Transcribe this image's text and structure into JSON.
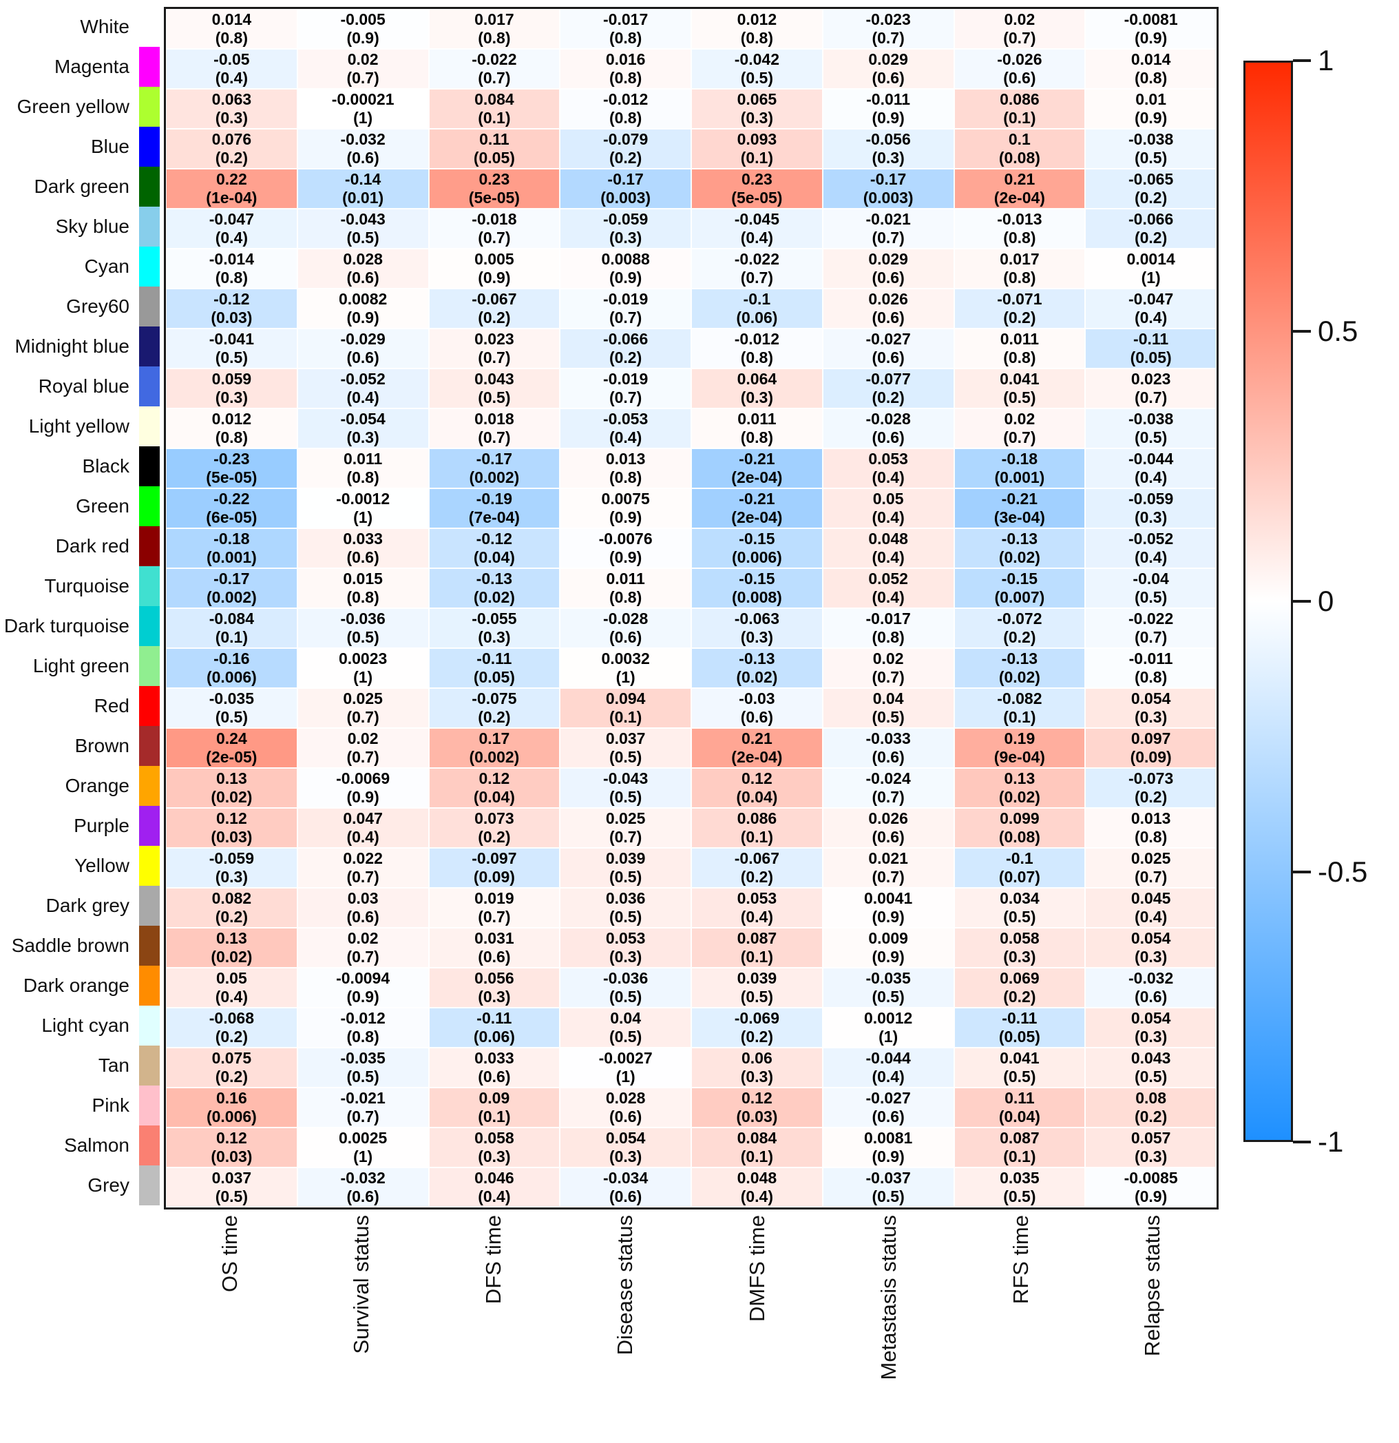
{
  "figure": {
    "background": "#ffffff"
  },
  "colorbar": {
    "ticks": [
      "1",
      "0.5",
      "0",
      "-0.5",
      "-1"
    ],
    "positive_color": "#ff2a00",
    "zero_color": "#ffffff",
    "negative_color": "#1e90ff"
  },
  "chart_data": {
    "type": "heatmap",
    "title": "",
    "cell_format": "correlation on first line, (p-value) on second line",
    "colorbar_range": [
      -1,
      1
    ],
    "legend_position": "right",
    "columns": [
      "OS time",
      "Survival status",
      "DFS time",
      "Disease status",
      "DMFS time",
      "Metastasis status",
      "RFS time",
      "Relapse status"
    ],
    "rows": [
      {
        "label": "White",
        "module_color": "#FFFFFF",
        "cells": [
          [
            "0.014",
            "0.8"
          ],
          [
            "-0.005",
            "0.9"
          ],
          [
            "0.017",
            "0.8"
          ],
          [
            "-0.017",
            "0.8"
          ],
          [
            "0.012",
            "0.8"
          ],
          [
            "-0.023",
            "0.7"
          ],
          [
            "0.02",
            "0.7"
          ],
          [
            "-0.0081",
            "0.9"
          ]
        ]
      },
      {
        "label": "Magenta",
        "module_color": "#FF00FF",
        "cells": [
          [
            "-0.05",
            "0.4"
          ],
          [
            "0.02",
            "0.7"
          ],
          [
            "-0.022",
            "0.7"
          ],
          [
            "0.016",
            "0.8"
          ],
          [
            "-0.042",
            "0.5"
          ],
          [
            "0.029",
            "0.6"
          ],
          [
            "-0.026",
            "0.6"
          ],
          [
            "0.014",
            "0.8"
          ]
        ]
      },
      {
        "label": "Green yellow",
        "module_color": "#ADFF2F",
        "cells": [
          [
            "0.063",
            "0.3"
          ],
          [
            "-0.00021",
            "1"
          ],
          [
            "0.084",
            "0.1"
          ],
          [
            "-0.012",
            "0.8"
          ],
          [
            "0.065",
            "0.3"
          ],
          [
            "-0.011",
            "0.9"
          ],
          [
            "0.086",
            "0.1"
          ],
          [
            "0.01",
            "0.9"
          ]
        ]
      },
      {
        "label": "Blue",
        "module_color": "#0000FF",
        "cells": [
          [
            "0.076",
            "0.2"
          ],
          [
            "-0.032",
            "0.6"
          ],
          [
            "0.11",
            "0.05"
          ],
          [
            "-0.079",
            "0.2"
          ],
          [
            "0.093",
            "0.1"
          ],
          [
            "-0.056",
            "0.3"
          ],
          [
            "0.1",
            "0.08"
          ],
          [
            "-0.038",
            "0.5"
          ]
        ]
      },
      {
        "label": "Dark green",
        "module_color": "#006400",
        "cells": [
          [
            "0.22",
            "1e-04"
          ],
          [
            "-0.14",
            "0.01"
          ],
          [
            "0.23",
            "5e-05"
          ],
          [
            "-0.17",
            "0.003"
          ],
          [
            "0.23",
            "5e-05"
          ],
          [
            "-0.17",
            "0.003"
          ],
          [
            "0.21",
            "2e-04"
          ],
          [
            "-0.065",
            "0.2"
          ]
        ]
      },
      {
        "label": "Sky blue",
        "module_color": "#87CEEB",
        "cells": [
          [
            "-0.047",
            "0.4"
          ],
          [
            "-0.043",
            "0.5"
          ],
          [
            "-0.018",
            "0.7"
          ],
          [
            "-0.059",
            "0.3"
          ],
          [
            "-0.045",
            "0.4"
          ],
          [
            "-0.021",
            "0.7"
          ],
          [
            "-0.013",
            "0.8"
          ],
          [
            "-0.066",
            "0.2"
          ]
        ]
      },
      {
        "label": "Cyan",
        "module_color": "#00FFFF",
        "cells": [
          [
            "-0.014",
            "0.8"
          ],
          [
            "0.028",
            "0.6"
          ],
          [
            "0.005",
            "0.9"
          ],
          [
            "0.0088",
            "0.9"
          ],
          [
            "-0.022",
            "0.7"
          ],
          [
            "0.029",
            "0.6"
          ],
          [
            "0.017",
            "0.8"
          ],
          [
            "0.0014",
            "1"
          ]
        ]
      },
      {
        "label": "Grey60",
        "module_color": "#999999",
        "cells": [
          [
            "-0.12",
            "0.03"
          ],
          [
            "0.0082",
            "0.9"
          ],
          [
            "-0.067",
            "0.2"
          ],
          [
            "-0.019",
            "0.7"
          ],
          [
            "-0.1",
            "0.06"
          ],
          [
            "0.026",
            "0.6"
          ],
          [
            "-0.071",
            "0.2"
          ],
          [
            "-0.047",
            "0.4"
          ]
        ]
      },
      {
        "label": "Midnight blue",
        "module_color": "#191970",
        "cells": [
          [
            "-0.041",
            "0.5"
          ],
          [
            "-0.029",
            "0.6"
          ],
          [
            "0.023",
            "0.7"
          ],
          [
            "-0.066",
            "0.2"
          ],
          [
            "-0.012",
            "0.8"
          ],
          [
            "-0.027",
            "0.6"
          ],
          [
            "0.011",
            "0.8"
          ],
          [
            "-0.11",
            "0.05"
          ]
        ]
      },
      {
        "label": "Royal blue",
        "module_color": "#4169E1",
        "cells": [
          [
            "0.059",
            "0.3"
          ],
          [
            "-0.052",
            "0.4"
          ],
          [
            "0.043",
            "0.5"
          ],
          [
            "-0.019",
            "0.7"
          ],
          [
            "0.064",
            "0.3"
          ],
          [
            "-0.077",
            "0.2"
          ],
          [
            "0.041",
            "0.5"
          ],
          [
            "0.023",
            "0.7"
          ]
        ]
      },
      {
        "label": "Light yellow",
        "module_color": "#FFFFE0",
        "cells": [
          [
            "0.012",
            "0.8"
          ],
          [
            "-0.054",
            "0.3"
          ],
          [
            "0.018",
            "0.7"
          ],
          [
            "-0.053",
            "0.4"
          ],
          [
            "0.011",
            "0.8"
          ],
          [
            "-0.028",
            "0.6"
          ],
          [
            "0.02",
            "0.7"
          ],
          [
            "-0.038",
            "0.5"
          ]
        ]
      },
      {
        "label": "Black",
        "module_color": "#000000",
        "cells": [
          [
            "-0.23",
            "5e-05"
          ],
          [
            "0.011",
            "0.8"
          ],
          [
            "-0.17",
            "0.002"
          ],
          [
            "0.013",
            "0.8"
          ],
          [
            "-0.21",
            "2e-04"
          ],
          [
            "0.053",
            "0.4"
          ],
          [
            "-0.18",
            "0.001"
          ],
          [
            "-0.044",
            "0.4"
          ]
        ]
      },
      {
        "label": "Green",
        "module_color": "#00FF00",
        "cells": [
          [
            "-0.22",
            "6e-05"
          ],
          [
            "-0.0012",
            "1"
          ],
          [
            "-0.19",
            "7e-04"
          ],
          [
            "0.0075",
            "0.9"
          ],
          [
            "-0.21",
            "2e-04"
          ],
          [
            "0.05",
            "0.4"
          ],
          [
            "-0.21",
            "3e-04"
          ],
          [
            "-0.059",
            "0.3"
          ]
        ]
      },
      {
        "label": "Dark red",
        "module_color": "#8B0000",
        "cells": [
          [
            "-0.18",
            "0.001"
          ],
          [
            "0.033",
            "0.6"
          ],
          [
            "-0.12",
            "0.04"
          ],
          [
            "-0.0076",
            "0.9"
          ],
          [
            "-0.15",
            "0.006"
          ],
          [
            "0.048",
            "0.4"
          ],
          [
            "-0.13",
            "0.02"
          ],
          [
            "-0.052",
            "0.4"
          ]
        ]
      },
      {
        "label": "Turquoise",
        "module_color": "#40E0D0",
        "cells": [
          [
            "-0.17",
            "0.002"
          ],
          [
            "0.015",
            "0.8"
          ],
          [
            "-0.13",
            "0.02"
          ],
          [
            "0.011",
            "0.8"
          ],
          [
            "-0.15",
            "0.008"
          ],
          [
            "0.052",
            "0.4"
          ],
          [
            "-0.15",
            "0.007"
          ],
          [
            "-0.04",
            "0.5"
          ]
        ]
      },
      {
        "label": "Dark turquoise",
        "module_color": "#00CED1",
        "cells": [
          [
            "-0.084",
            "0.1"
          ],
          [
            "-0.036",
            "0.5"
          ],
          [
            "-0.055",
            "0.3"
          ],
          [
            "-0.028",
            "0.6"
          ],
          [
            "-0.063",
            "0.3"
          ],
          [
            "-0.017",
            "0.8"
          ],
          [
            "-0.072",
            "0.2"
          ],
          [
            "-0.022",
            "0.7"
          ]
        ]
      },
      {
        "label": "Light green",
        "module_color": "#90EE90",
        "cells": [
          [
            "-0.16",
            "0.006"
          ],
          [
            "0.0023",
            "1"
          ],
          [
            "-0.11",
            "0.05"
          ],
          [
            "0.0032",
            "1"
          ],
          [
            "-0.13",
            "0.02"
          ],
          [
            "0.02",
            "0.7"
          ],
          [
            "-0.13",
            "0.02"
          ],
          [
            "-0.011",
            "0.8"
          ]
        ]
      },
      {
        "label": "Red",
        "module_color": "#FF0000",
        "cells": [
          [
            "-0.035",
            "0.5"
          ],
          [
            "0.025",
            "0.7"
          ],
          [
            "-0.075",
            "0.2"
          ],
          [
            "0.094",
            "0.1"
          ],
          [
            "-0.03",
            "0.6"
          ],
          [
            "0.04",
            "0.5"
          ],
          [
            "-0.082",
            "0.1"
          ],
          [
            "0.054",
            "0.3"
          ]
        ]
      },
      {
        "label": "Brown",
        "module_color": "#A52A2A",
        "cells": [
          [
            "0.24",
            "2e-05"
          ],
          [
            "0.02",
            "0.7"
          ],
          [
            "0.17",
            "0.002"
          ],
          [
            "0.037",
            "0.5"
          ],
          [
            "0.21",
            "2e-04"
          ],
          [
            "-0.033",
            "0.6"
          ],
          [
            "0.19",
            "9e-04"
          ],
          [
            "0.097",
            "0.09"
          ]
        ]
      },
      {
        "label": "Orange",
        "module_color": "#FFA500",
        "cells": [
          [
            "0.13",
            "0.02"
          ],
          [
            "-0.0069",
            "0.9"
          ],
          [
            "0.12",
            "0.04"
          ],
          [
            "-0.043",
            "0.5"
          ],
          [
            "0.12",
            "0.04"
          ],
          [
            "-0.024",
            "0.7"
          ],
          [
            "0.13",
            "0.02"
          ],
          [
            "-0.073",
            "0.2"
          ]
        ]
      },
      {
        "label": "Purple",
        "module_color": "#A020F0",
        "cells": [
          [
            "0.12",
            "0.03"
          ],
          [
            "0.047",
            "0.4"
          ],
          [
            "0.073",
            "0.2"
          ],
          [
            "0.025",
            "0.7"
          ],
          [
            "0.086",
            "0.1"
          ],
          [
            "0.026",
            "0.6"
          ],
          [
            "0.099",
            "0.08"
          ],
          [
            "0.013",
            "0.8"
          ]
        ]
      },
      {
        "label": "Yellow",
        "module_color": "#FFFF00",
        "cells": [
          [
            "-0.059",
            "0.3"
          ],
          [
            "0.022",
            "0.7"
          ],
          [
            "-0.097",
            "0.09"
          ],
          [
            "0.039",
            "0.5"
          ],
          [
            "-0.067",
            "0.2"
          ],
          [
            "0.021",
            "0.7"
          ],
          [
            "-0.1",
            "0.07"
          ],
          [
            "0.025",
            "0.7"
          ]
        ]
      },
      {
        "label": "Dark grey",
        "module_color": "#A9A9A9",
        "cells": [
          [
            "0.082",
            "0.2"
          ],
          [
            "0.03",
            "0.6"
          ],
          [
            "0.019",
            "0.7"
          ],
          [
            "0.036",
            "0.5"
          ],
          [
            "0.053",
            "0.4"
          ],
          [
            "0.0041",
            "0.9"
          ],
          [
            "0.034",
            "0.5"
          ],
          [
            "0.045",
            "0.4"
          ]
        ]
      },
      {
        "label": "Saddle brown",
        "module_color": "#8B4513",
        "cells": [
          [
            "0.13",
            "0.02"
          ],
          [
            "0.02",
            "0.7"
          ],
          [
            "0.031",
            "0.6"
          ],
          [
            "0.053",
            "0.3"
          ],
          [
            "0.087",
            "0.1"
          ],
          [
            "0.009",
            "0.9"
          ],
          [
            "0.058",
            "0.3"
          ],
          [
            "0.054",
            "0.3"
          ]
        ]
      },
      {
        "label": "Dark orange",
        "module_color": "#FF8C00",
        "cells": [
          [
            "0.05",
            "0.4"
          ],
          [
            "-0.0094",
            "0.9"
          ],
          [
            "0.056",
            "0.3"
          ],
          [
            "-0.036",
            "0.5"
          ],
          [
            "0.039",
            "0.5"
          ],
          [
            "-0.035",
            "0.5"
          ],
          [
            "0.069",
            "0.2"
          ],
          [
            "-0.032",
            "0.6"
          ]
        ]
      },
      {
        "label": "Light cyan",
        "module_color": "#E0FFFF",
        "cells": [
          [
            "-0.068",
            "0.2"
          ],
          [
            "-0.012",
            "0.8"
          ],
          [
            "-0.11",
            "0.06"
          ],
          [
            "0.04",
            "0.5"
          ],
          [
            "-0.069",
            "0.2"
          ],
          [
            "0.0012",
            "1"
          ],
          [
            "-0.11",
            "0.05"
          ],
          [
            "0.054",
            "0.3"
          ]
        ]
      },
      {
        "label": "Tan",
        "module_color": "#D2B48C",
        "cells": [
          [
            "0.075",
            "0.2"
          ],
          [
            "-0.035",
            "0.5"
          ],
          [
            "0.033",
            "0.6"
          ],
          [
            "-0.0027",
            "1"
          ],
          [
            "0.06",
            "0.3"
          ],
          [
            "-0.044",
            "0.4"
          ],
          [
            "0.041",
            "0.5"
          ],
          [
            "0.043",
            "0.5"
          ]
        ]
      },
      {
        "label": "Pink",
        "module_color": "#FFC0CB",
        "cells": [
          [
            "0.16",
            "0.006"
          ],
          [
            "-0.021",
            "0.7"
          ],
          [
            "0.09",
            "0.1"
          ],
          [
            "0.028",
            "0.6"
          ],
          [
            "0.12",
            "0.03"
          ],
          [
            "-0.027",
            "0.6"
          ],
          [
            "0.11",
            "0.04"
          ],
          [
            "0.08",
            "0.2"
          ]
        ]
      },
      {
        "label": "Salmon",
        "module_color": "#FA8072",
        "cells": [
          [
            "0.12",
            "0.03"
          ],
          [
            "0.0025",
            "1"
          ],
          [
            "0.058",
            "0.3"
          ],
          [
            "0.054",
            "0.3"
          ],
          [
            "0.084",
            "0.1"
          ],
          [
            "0.0081",
            "0.9"
          ],
          [
            "0.087",
            "0.1"
          ],
          [
            "0.057",
            "0.3"
          ]
        ]
      },
      {
        "label": "Grey",
        "module_color": "#BEBEBE",
        "cells": [
          [
            "0.037",
            "0.5"
          ],
          [
            "-0.032",
            "0.6"
          ],
          [
            "0.046",
            "0.4"
          ],
          [
            "-0.034",
            "0.6"
          ],
          [
            "0.048",
            "0.4"
          ],
          [
            "-0.037",
            "0.5"
          ],
          [
            "0.035",
            "0.5"
          ],
          [
            "-0.0085",
            "0.9"
          ]
        ]
      }
    ]
  }
}
